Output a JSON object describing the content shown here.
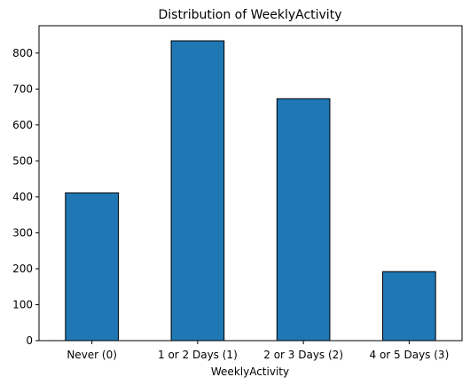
{
  "chart_data": {
    "type": "bar",
    "title": "Distribution of WeeklyActivity",
    "xlabel": "WeeklyActivity",
    "ylabel": "",
    "categories": [
      "Never (0)",
      "1 or 2 Days (1)",
      "2 or 3 Days (2)",
      "4 or 5 Days (3)"
    ],
    "values": [
      411,
      834,
      673,
      192
    ],
    "ylim": [
      0,
      876
    ],
    "yticks": [
      0,
      100,
      200,
      300,
      400,
      500,
      600,
      700,
      800
    ],
    "grid": false,
    "legend": "none",
    "bar_color": "#1f77b4",
    "edge_color": "#000000"
  }
}
